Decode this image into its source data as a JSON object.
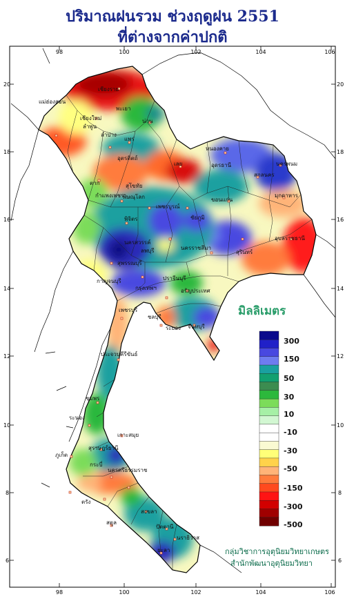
{
  "title": {
    "line1": "ปริมาณฝนรวม ช่วงฤดูฝน 2551",
    "line2": "ที่ต่างจากค่าปกติ"
  },
  "axes": {
    "lon_ticks": [
      "98",
      "100",
      "102",
      "104",
      "106"
    ],
    "lat_ticks": [
      "20",
      "18",
      "16",
      "14",
      "12",
      "10",
      "8",
      "6"
    ]
  },
  "legend": {
    "unit": "มิลลิเมตร",
    "labels": [
      "300",
      "150",
      "50",
      "30",
      "10",
      "-10",
      "-30",
      "-50",
      "-150",
      "-300",
      "-500"
    ],
    "colors": [
      "#0a0a8c",
      "#2020c8",
      "#4848e0",
      "#6e7cf0",
      "#1aa0a0",
      "#12a070",
      "#3c8c50",
      "#2cb83c",
      "#7cdc5a",
      "#a6f0a6",
      "#d2f7d2",
      "#ffffff",
      "#ffffff",
      "#fafad2",
      "#ffff78",
      "#ffd24a",
      "#ffb478",
      "#ff7c3c",
      "#ff4a1e",
      "#ff1414",
      "#d20000",
      "#a00000",
      "#700000"
    ]
  },
  "provinces": [
    "เชียงราย",
    "แม่ฮ่องสอน",
    "พะเยา",
    "น่าน",
    "เชียงใหม่",
    "ลำพูน",
    "ลำปาง",
    "แพร่",
    "ตาก",
    "อุตรดิตถ์",
    "สุโขทัย",
    "เลย",
    "หนองคาย",
    "อุดรธานี",
    "นครพนม",
    "สกลนคร",
    "มุกดาหาร",
    "พิษณุโลก",
    "กำแพงเพชร",
    "เพชรบูรณ์",
    "พิจิตร",
    "ขอนแก่น",
    "นครสวรรค์",
    "ชัยภูมิ",
    "อุบลราชธานี",
    "ลพบุรี",
    "นครราชสีมา",
    "สุรินทร์",
    "สุพรรณบุรี",
    "กาญจนบุรี",
    "ปราจีนบุรี",
    "กรุงเทพฯ",
    "อรัญประเทศ",
    "ชลบุรี",
    "ระยอง",
    "จันทบุรี",
    "เพชรบุรี",
    "ประจวบคีรีขันธ์",
    "ชุมพร",
    "ระนอง",
    "สุราษฎร์ธานี",
    "เกาะสมุย",
    "ภูเก็ต",
    "กระบี่",
    "นครศรีธรรมราช",
    "ตรัง",
    "สงขลา",
    "ปัตตานี",
    "นราธิวาส",
    "สตูล",
    "ยะลา"
  ],
  "credits": {
    "line1": "กลุ่มวิชาการอุตุนิยมวิทยาเกษตร",
    "line2": "สำนักพัฒนาอุตุนิยมวิทยา"
  }
}
